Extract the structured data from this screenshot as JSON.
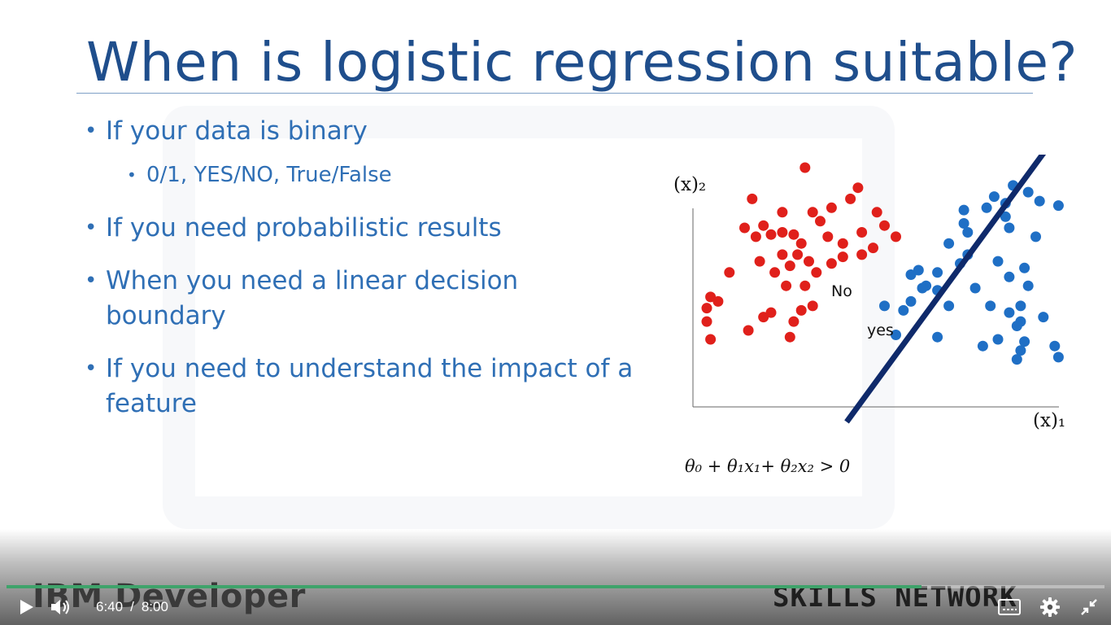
{
  "slide": {
    "title": "When is logistic regression suitable?",
    "bullets": [
      "If your data is binary",
      "If you need probabilistic results",
      "When you need a linear decision boundary",
      "If you need to understand the impact of a feature"
    ],
    "sub_bullet": "0/1, YES/NO,  True/False"
  },
  "chart_data": {
    "type": "scatter",
    "xlabel": "(x)₁",
    "ylabel": "(x)₂",
    "region_labels": [
      "No",
      "yes"
    ],
    "equation": "θ₀ + θ₁x₁+ θ₂x₂ > 0",
    "xlim": [
      0,
      100
    ],
    "ylim": [
      0,
      100
    ],
    "series": [
      {
        "color": "#e0201b",
        "points": [
          [
            29,
            100
          ],
          [
            15,
            86
          ],
          [
            36,
            82
          ],
          [
            43,
            91
          ],
          [
            41,
            86
          ],
          [
            23,
            80
          ],
          [
            31,
            80
          ],
          [
            18,
            74
          ],
          [
            33,
            76
          ],
          [
            48,
            80
          ],
          [
            13,
            73
          ],
          [
            26,
            70
          ],
          [
            35,
            69
          ],
          [
            44,
            71
          ],
          [
            50,
            74
          ],
          [
            16,
            69
          ],
          [
            20,
            70
          ],
          [
            23,
            71
          ],
          [
            53,
            69
          ],
          [
            39,
            66
          ],
          [
            47,
            64
          ],
          [
            28,
            66
          ],
          [
            23,
            61
          ],
          [
            17,
            58
          ],
          [
            27,
            61
          ],
          [
            39,
            60
          ],
          [
            44,
            61
          ],
          [
            25,
            56
          ],
          [
            21,
            53
          ],
          [
            32,
            53
          ],
          [
            9,
            53
          ],
          [
            30,
            58
          ],
          [
            36,
            57
          ],
          [
            24,
            47
          ],
          [
            29,
            47
          ],
          [
            4,
            42
          ],
          [
            6,
            40
          ],
          [
            31,
            38
          ],
          [
            20,
            35
          ],
          [
            28,
            36
          ],
          [
            18,
            33
          ],
          [
            26,
            31
          ],
          [
            3,
            37
          ],
          [
            3,
            31
          ],
          [
            4,
            23
          ],
          [
            14,
            27
          ],
          [
            25,
            24
          ]
        ]
      },
      {
        "color": "#1f6fc5",
        "points": [
          [
            84,
            92
          ],
          [
            88,
            89
          ],
          [
            82,
            84
          ],
          [
            79,
            87
          ],
          [
            77,
            82
          ],
          [
            91,
            85
          ],
          [
            96,
            83
          ],
          [
            71,
            81
          ],
          [
            71,
            75
          ],
          [
            82,
            78
          ],
          [
            83,
            73
          ],
          [
            90,
            69
          ],
          [
            72,
            71
          ],
          [
            67,
            66
          ],
          [
            59,
            54
          ],
          [
            72,
            61
          ],
          [
            80,
            58
          ],
          [
            64,
            53
          ],
          [
            87,
            55
          ],
          [
            70,
            57
          ],
          [
            61,
            47
          ],
          [
            57,
            52
          ],
          [
            55,
            36
          ],
          [
            60,
            46
          ],
          [
            50,
            38
          ],
          [
            57,
            40
          ],
          [
            64,
            45
          ],
          [
            74,
            46
          ],
          [
            67,
            38
          ],
          [
            83,
            51
          ],
          [
            88,
            47
          ],
          [
            78,
            38
          ],
          [
            86,
            38
          ],
          [
            83,
            35
          ],
          [
            86,
            31
          ],
          [
            92,
            33
          ],
          [
            85,
            29
          ],
          [
            87,
            22
          ],
          [
            80,
            23
          ],
          [
            96,
            15
          ],
          [
            76,
            20
          ],
          [
            64,
            24
          ],
          [
            53,
            25
          ],
          [
            85,
            14
          ],
          [
            95,
            20
          ],
          [
            86,
            18
          ]
        ]
      }
    ],
    "boundary_line": [
      [
        40,
        -14
      ],
      [
        97,
        118
      ]
    ]
  },
  "player": {
    "current_time": "6:40",
    "separator": "/",
    "duration": "8:00",
    "progress_fraction": 0.8333,
    "brand_left": "IBM Developer",
    "brand_right": "SKILLS NETWORK",
    "accent_color": "#3fa36b",
    "icons": {
      "play": "play-icon",
      "volume": "volume-icon",
      "captions": "captions-icon",
      "settings": "gear-icon",
      "exit_fullscreen": "exit-fullscreen-icon"
    }
  }
}
